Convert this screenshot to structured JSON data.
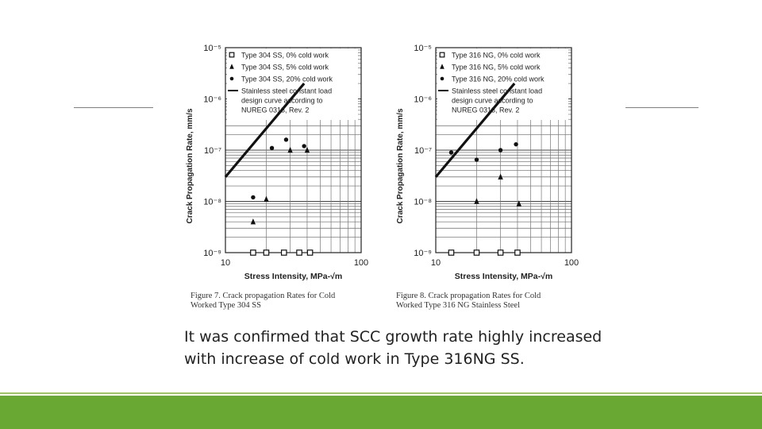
{
  "slide": {
    "conclusion_lines": [
      "It was confirmed that SCC growth rate highly increased",
      "with increase of  cold work in Type 316NG SS."
    ],
    "colors": {
      "footer": "#6aa834",
      "footer_accent": "#9cc85a",
      "rule": "#7f7f7f"
    }
  },
  "figures": [
    {
      "caption_line1": "Figure 7.  Crack propagation Rates for Cold",
      "caption_line2": "Worked Type 304 SS"
    },
    {
      "caption_line1": "Figure 8.  Crack propagation Rates for Cold",
      "caption_line2": "Worked Type 316 NG Stainless Steel"
    }
  ],
  "chart_data": [
    {
      "type": "scatter",
      "xlabel": "Stress Intensity, MPa-√m",
      "ylabel": "Crack Propagation Rate, mm/s",
      "xscale": "log",
      "yscale": "log",
      "xlim": [
        10,
        100
      ],
      "ylim": [
        1e-09,
        1e-05
      ],
      "x_ticks": [
        "10",
        "100"
      ],
      "y_ticks": [
        "10⁻⁹",
        "10⁻⁸",
        "10⁻⁷",
        "10⁻⁶",
        "10⁻⁵"
      ],
      "grid": true,
      "legend_position": "top",
      "series": [
        {
          "name": "Type 304 SS, 0% cold work",
          "marker": "square-open",
          "points": [
            [
              16,
              1e-09
            ],
            [
              20,
              1e-09
            ],
            [
              27,
              1e-09
            ],
            [
              35,
              1e-09
            ],
            [
              42,
              1e-09
            ]
          ]
        },
        {
          "name": "Type 304 SS, 5% cold work",
          "marker": "triangle",
          "points": [
            [
              16,
              4e-09
            ],
            [
              20,
              1.1e-08
            ],
            [
              30,
              1e-07
            ],
            [
              40,
              1e-07
            ]
          ]
        },
        {
          "name": "Type 304 SS, 20% cold work",
          "marker": "dot",
          "points": [
            [
              16,
              1.2e-08
            ],
            [
              22,
              1.1e-07
            ],
            [
              28,
              1.6e-07
            ],
            [
              38,
              1.2e-07
            ]
          ]
        }
      ],
      "design_curve": {
        "name": "Stainless steel constant load design curve according to NUREG 0313, Rev. 2",
        "points": [
          [
            10,
            3e-08
          ],
          [
            38,
            2e-06
          ]
        ]
      }
    },
    {
      "type": "scatter",
      "xlabel": "Stress Intensity, MPa-√m",
      "ylabel": "Crack Propagation Rate, mm/s",
      "xscale": "log",
      "yscale": "log",
      "xlim": [
        10,
        100
      ],
      "ylim": [
        1e-09,
        1e-05
      ],
      "x_ticks": [
        "10",
        "100"
      ],
      "y_ticks": [
        "10⁻⁹",
        "10⁻⁸",
        "10⁻⁷",
        "10⁻⁶",
        "10⁻⁵"
      ],
      "grid": true,
      "legend_position": "top",
      "series": [
        {
          "name": "Type 316 NG, 0% cold work",
          "marker": "square-open",
          "points": [
            [
              13,
              1e-09
            ],
            [
              20,
              1e-09
            ],
            [
              30,
              1e-09
            ],
            [
              40,
              1e-09
            ]
          ]
        },
        {
          "name": "Type 316 NG, 5% cold work",
          "marker": "triangle",
          "points": [
            [
              20,
              1e-08
            ],
            [
              30,
              3e-08
            ],
            [
              41,
              9e-09
            ]
          ]
        },
        {
          "name": "Type 316 NG, 20% cold work",
          "marker": "dot",
          "points": [
            [
              13,
              9e-08
            ],
            [
              20,
              6.5e-08
            ],
            [
              30,
              1e-07
            ],
            [
              39,
              1.3e-07
            ]
          ]
        }
      ],
      "design_curve": {
        "name": "Stainless steel constant load design curve according to NUREG 0313, Rev. 2",
        "points": [
          [
            10,
            3e-08
          ],
          [
            38,
            2e-06
          ]
        ]
      }
    }
  ]
}
